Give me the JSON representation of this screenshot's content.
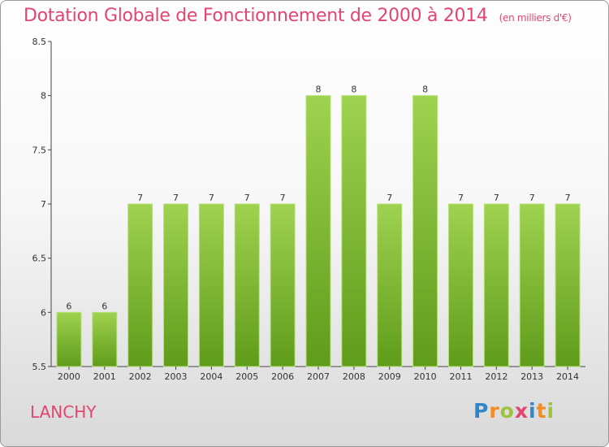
{
  "chart_data": {
    "type": "bar",
    "title": "Dotation Globale de Fonctionnement de 2000 à 2014",
    "unit": "(en milliers d'€)",
    "categories": [
      "2000",
      "2001",
      "2002",
      "2003",
      "2004",
      "2005",
      "2006",
      "2007",
      "2008",
      "2009",
      "2010",
      "2011",
      "2012",
      "2013",
      "2014"
    ],
    "values": [
      6,
      6,
      7,
      7,
      7,
      7,
      7,
      8,
      8,
      7,
      8,
      7,
      7,
      7,
      7
    ],
    "ylim": [
      5.5,
      8.5
    ],
    "yticks": [
      "5.5",
      "6",
      "6.5",
      "7",
      "7.5",
      "8",
      "8.5"
    ],
    "xlabel": "",
    "ylabel": "",
    "bar_color": "#8cc63f"
  },
  "commune": "LANCHY",
  "logo": {
    "text": "Proxiti",
    "letters": [
      "P",
      "r",
      "o",
      "x",
      "i",
      "t",
      "i"
    ]
  },
  "colors": {
    "accent": "#e2456f"
  }
}
